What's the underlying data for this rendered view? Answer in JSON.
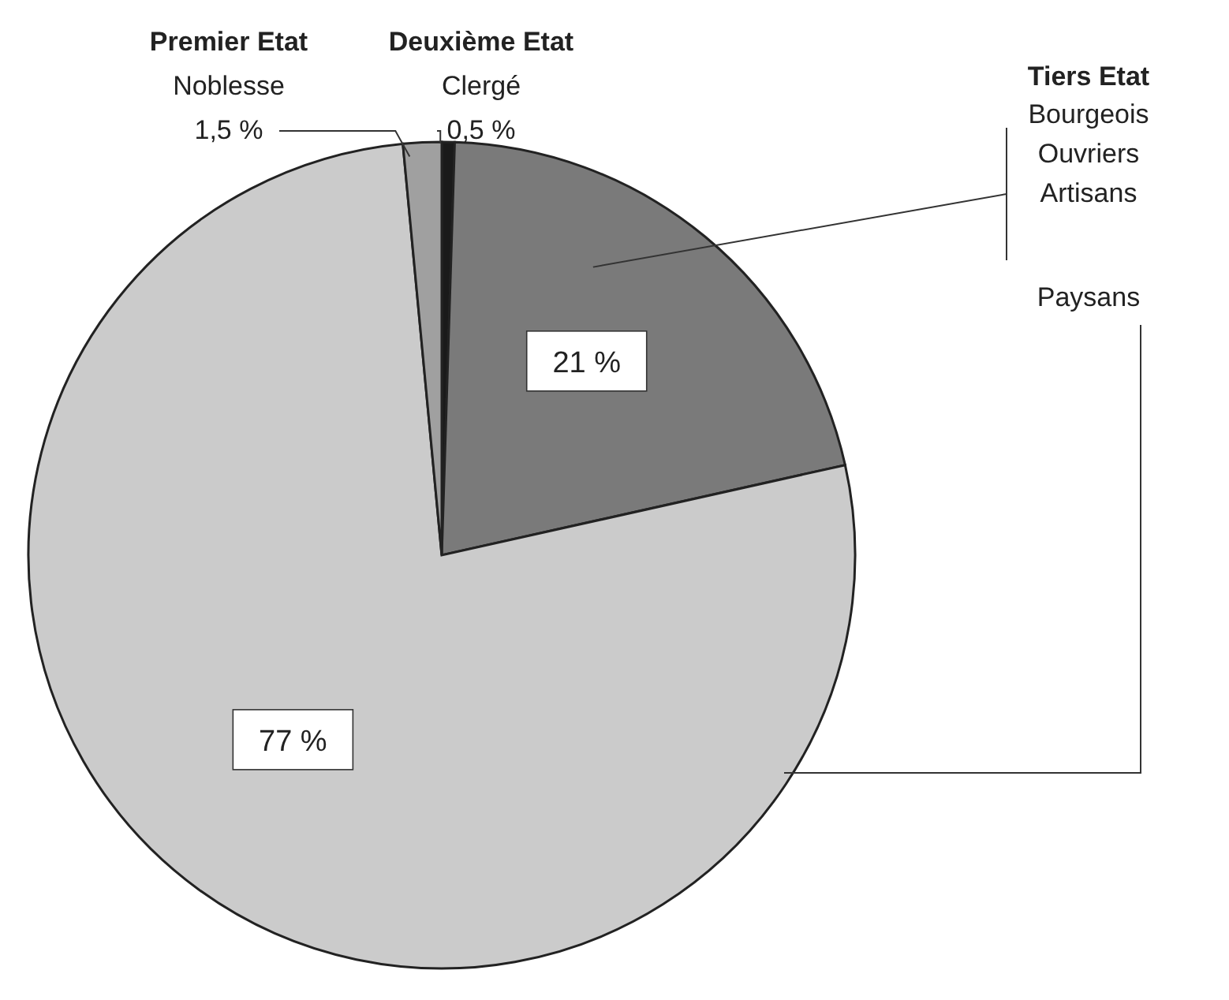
{
  "chart_data": {
    "type": "pie",
    "categories": [
      "Clergé",
      "Bourgeois Ouvriers Artisans",
      "Paysans",
      "Noblesse"
    ],
    "values": [
      0.5,
      21,
      77,
      1.5
    ],
    "colors": [
      "#1a1a1a",
      "#7a7a7a",
      "#cbcbcb",
      "#a0a0a0"
    ],
    "value_labels": [
      "0,5 %",
      "21 %",
      "77 %",
      "1,5 %"
    ],
    "annotations": [
      "Premier Etat",
      "Deuxième Etat",
      "Tiers Etat"
    ]
  }
}
